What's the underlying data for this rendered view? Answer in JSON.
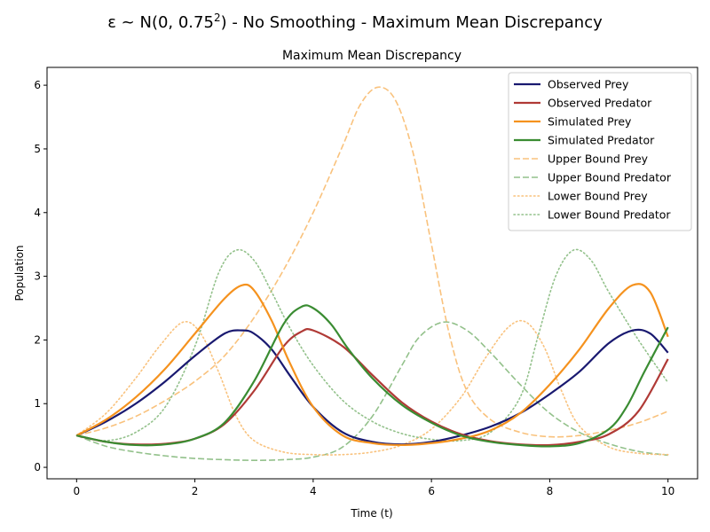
{
  "chart_data": {
    "type": "line",
    "suptitle_prefix": "ε ~ N(0, 0.75",
    "suptitle_exp": "2",
    "suptitle_suffix": ") - No Smoothing - Maximum Mean Discrepancy",
    "title": "Maximum Mean Discrepancy",
    "xlabel": "Time (t)",
    "ylabel": "Population",
    "xlim": [
      -0.5,
      10.5
    ],
    "ylim": [
      -0.18,
      6.28
    ],
    "xticks": [
      0,
      2,
      4,
      6,
      8,
      10
    ],
    "yticks": [
      0,
      1,
      2,
      3,
      4,
      5,
      6
    ],
    "legend_position": "top-right",
    "grid": false,
    "series": [
      {
        "name": "Observed Prey",
        "color": "#191970",
        "style": "solid",
        "width": 2.2,
        "x": [
          0,
          0.5,
          1.0,
          1.5,
          2.0,
          2.5,
          2.8,
          3.0,
          3.3,
          3.6,
          4.0,
          4.5,
          5.0,
          5.5,
          6.0,
          6.5,
          7.0,
          7.5,
          8.0,
          8.5,
          9.0,
          9.4,
          9.7,
          10.0
        ],
        "y": [
          0.5,
          0.72,
          1.0,
          1.35,
          1.75,
          2.1,
          2.15,
          2.1,
          1.85,
          1.45,
          0.95,
          0.55,
          0.4,
          0.36,
          0.4,
          0.5,
          0.64,
          0.85,
          1.15,
          1.5,
          1.95,
          2.15,
          2.1,
          1.8
        ]
      },
      {
        "name": "Observed Predator",
        "color": "#b03a36",
        "style": "solid",
        "width": 2.2,
        "x": [
          0,
          0.5,
          1.0,
          1.5,
          2.0,
          2.5,
          3.0,
          3.5,
          3.8,
          4.0,
          4.5,
          5.0,
          5.5,
          6.0,
          6.5,
          7.0,
          7.5,
          8.0,
          8.5,
          9.0,
          9.5,
          10.0
        ],
        "y": [
          0.5,
          0.4,
          0.36,
          0.37,
          0.45,
          0.68,
          1.2,
          1.9,
          2.13,
          2.15,
          1.9,
          1.45,
          1.02,
          0.72,
          0.52,
          0.41,
          0.36,
          0.35,
          0.4,
          0.52,
          0.88,
          1.7
        ]
      },
      {
        "name": "Simulated Prey",
        "color": "#f5921e",
        "style": "solid",
        "width": 2.2,
        "x": [
          0,
          0.5,
          1.0,
          1.5,
          2.0,
          2.5,
          2.8,
          3.0,
          3.3,
          3.6,
          4.0,
          4.5,
          5.0,
          5.5,
          6.0,
          6.5,
          7.0,
          7.5,
          8.0,
          8.5,
          9.0,
          9.4,
          9.7,
          10.0
        ],
        "y": [
          0.5,
          0.75,
          1.1,
          1.55,
          2.1,
          2.65,
          2.86,
          2.78,
          2.3,
          1.65,
          0.95,
          0.5,
          0.38,
          0.35,
          0.38,
          0.45,
          0.58,
          0.85,
          1.3,
          1.85,
          2.5,
          2.86,
          2.75,
          2.05
        ]
      },
      {
        "name": "Simulated Predator",
        "color": "#3a8c32",
        "style": "solid",
        "width": 2.2,
        "x": [
          0,
          0.5,
          1.0,
          1.5,
          2.0,
          2.5,
          3.0,
          3.5,
          3.8,
          4.0,
          4.3,
          4.6,
          5.0,
          5.5,
          6.0,
          6.5,
          7.0,
          7.5,
          8.0,
          8.5,
          9.0,
          9.3,
          9.6,
          10.0
        ],
        "y": [
          0.5,
          0.4,
          0.35,
          0.36,
          0.45,
          0.7,
          1.35,
          2.25,
          2.52,
          2.5,
          2.25,
          1.85,
          1.4,
          0.98,
          0.7,
          0.5,
          0.4,
          0.35,
          0.33,
          0.38,
          0.6,
          0.95,
          1.5,
          2.2
        ]
      },
      {
        "name": "Upper Bound Prey",
        "color": "#f9c27d",
        "style": "dashed",
        "width": 1.6,
        "x": [
          0,
          0.5,
          1.0,
          1.5,
          2.0,
          2.5,
          3.0,
          3.5,
          4.0,
          4.5,
          4.8,
          5.1,
          5.4,
          5.7,
          6.0,
          6.3,
          6.6,
          7.0,
          7.5,
          8.0,
          8.5,
          9.0,
          9.5,
          10.0
        ],
        "y": [
          0.5,
          0.62,
          0.8,
          1.05,
          1.35,
          1.75,
          2.35,
          3.1,
          4.0,
          5.05,
          5.7,
          5.97,
          5.75,
          4.9,
          3.5,
          2.1,
          1.2,
          0.75,
          0.55,
          0.48,
          0.5,
          0.58,
          0.7,
          0.88
        ]
      },
      {
        "name": "Upper Bound Predator",
        "color": "#93c18b",
        "style": "dashed",
        "width": 1.6,
        "x": [
          0,
          0.5,
          1.0,
          1.5,
          2.0,
          2.5,
          3.0,
          3.5,
          4.0,
          4.5,
          5.0,
          5.5,
          5.8,
          6.2,
          6.6,
          7.0,
          7.5,
          8.0,
          8.5,
          9.0,
          9.5,
          10.0
        ],
        "y": [
          0.5,
          0.33,
          0.24,
          0.18,
          0.14,
          0.12,
          0.11,
          0.12,
          0.16,
          0.32,
          0.8,
          1.6,
          2.05,
          2.28,
          2.15,
          1.8,
          1.3,
          0.85,
          0.55,
          0.37,
          0.25,
          0.19
        ]
      },
      {
        "name": "Lower Bound Prey",
        "color": "#f9c27d",
        "style": "dotted",
        "width": 1.6,
        "x": [
          0,
          0.5,
          1.0,
          1.4,
          1.8,
          2.1,
          2.4,
          2.7,
          3.0,
          3.5,
          4.0,
          4.5,
          5.0,
          5.5,
          6.0,
          6.5,
          6.9,
          7.3,
          7.6,
          7.9,
          8.2,
          8.5,
          9.0,
          9.5,
          10.0
        ],
        "y": [
          0.5,
          0.85,
          1.4,
          1.9,
          2.28,
          2.1,
          1.5,
          0.8,
          0.42,
          0.24,
          0.2,
          0.2,
          0.24,
          0.35,
          0.6,
          1.1,
          1.7,
          2.2,
          2.28,
          1.9,
          1.2,
          0.65,
          0.32,
          0.22,
          0.2
        ]
      },
      {
        "name": "Lower Bound Predator",
        "color": "#93c18b",
        "style": "dotted",
        "width": 1.6,
        "x": [
          0,
          0.5,
          1.0,
          1.5,
          2.0,
          2.4,
          2.7,
          3.0,
          3.3,
          3.6,
          4.0,
          4.5,
          5.0,
          5.5,
          6.0,
          6.5,
          7.0,
          7.5,
          7.8,
          8.1,
          8.4,
          8.7,
          9.0,
          9.5,
          10.0
        ],
        "y": [
          0.5,
          0.42,
          0.55,
          0.95,
          1.9,
          3.05,
          3.41,
          3.25,
          2.75,
          2.2,
          1.6,
          1.05,
          0.72,
          0.53,
          0.44,
          0.42,
          0.55,
          1.1,
          2.05,
          3.0,
          3.41,
          3.25,
          2.75,
          2.0,
          1.33
        ]
      }
    ]
  }
}
